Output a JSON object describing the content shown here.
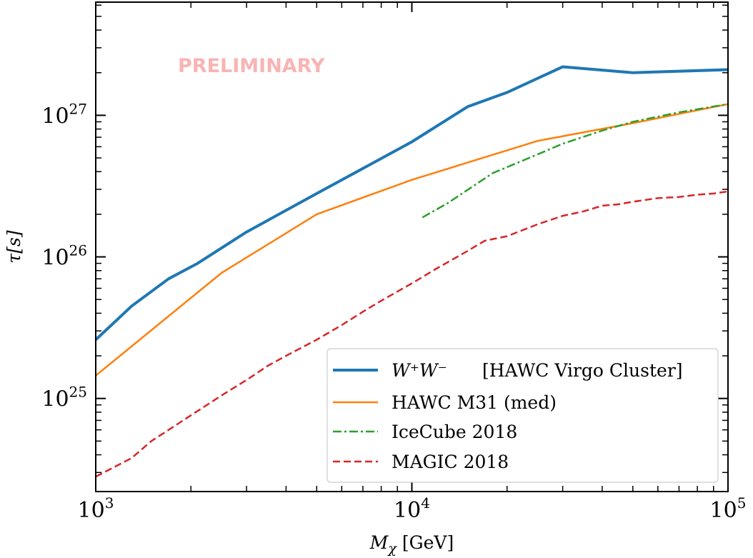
{
  "chart_data": {
    "type": "line",
    "xlabel_symbol": "M",
    "xlabel_sub": "χ",
    "xlabel_unit": " [GeV]",
    "ylabel_symbol": "τ",
    "ylabel_unit": "[s]",
    "xscale": "log",
    "yscale": "log",
    "xlim": [
      1000,
      100000
    ],
    "ylim": [
      2.2e+24,
      6.3e+27
    ],
    "x_tick_labels": [
      {
        "value": 1000,
        "base": "10",
        "exp": "3"
      },
      {
        "value": 10000,
        "base": "10",
        "exp": "4"
      },
      {
        "value": 100000,
        "base": "10",
        "exp": "5"
      }
    ],
    "y_tick_labels": [
      {
        "value": 1e+25,
        "base": "10",
        "exp": "25"
      },
      {
        "value": 1e+26,
        "base": "10",
        "exp": "26"
      },
      {
        "value": 1e+27,
        "base": "10",
        "exp": "27"
      }
    ],
    "watermark": "PRELIMINARY",
    "legend_position": "lower-right",
    "grid": false,
    "series": [
      {
        "name_main": "W⁺W⁻",
        "name_note": "[HAWC Virgo Cluster]",
        "color": "#1f77b4",
        "style": "solid",
        "width": 4,
        "x": [
          1000,
          1300,
          1700,
          2100,
          3000,
          5000,
          10000,
          15000,
          20000,
          30000,
          50000,
          100000
        ],
        "y": [
          2.6e+25,
          4.5e+25,
          7e+25,
          9e+25,
          1.5e+26,
          2.8e+26,
          6.5e+26,
          1.15e+27,
          1.45e+27,
          2.2e+27,
          2e+27,
          2.1e+27
        ]
      },
      {
        "name_main": "HAWC M31 (med)",
        "name_note": "",
        "color": "#ff7f0e",
        "style": "solid",
        "width": 2.5,
        "x": [
          1000,
          2500,
          5000,
          10000,
          25000,
          50000,
          100000
        ],
        "y": [
          1.45e+25,
          7.7e+25,
          2e+26,
          3.5e+26,
          6.6e+26,
          8.8e+26,
          1.2e+27
        ]
      },
      {
        "name_main": "IceCube 2018",
        "name_note": "",
        "color": "#2ca02c",
        "style": "dashdot",
        "width": 2.5,
        "x": [
          10800,
          13000,
          18000,
          25000,
          30000,
          40000,
          50000,
          70000,
          100000
        ],
        "y": [
          1.9e+26,
          2.4e+26,
          3.9e+26,
          5.3e+26,
          6.3e+26,
          7.8e+26,
          9e+26,
          1.05e+27,
          1.2e+27
        ]
      },
      {
        "name_main": "MAGIC 2018",
        "name_note": "",
        "color": "#d62728",
        "style": "dashed",
        "width": 2.5,
        "x": [
          1000,
          1300,
          1500,
          1700,
          2000,
          2500,
          3000,
          3500,
          4000,
          5000,
          6000,
          7000,
          8000,
          10000,
          12000,
          15000,
          17000,
          20000,
          25000,
          30000,
          35000,
          40000,
          45000,
          50000,
          60000,
          70000,
          80000,
          90000,
          100000
        ],
        "y": [
          2.8e+24,
          3.8e+24,
          5e+24,
          6e+24,
          7.6e+24,
          1.05e+25,
          1.35e+25,
          1.7e+25,
          2e+25,
          2.6e+25,
          3.3e+25,
          4.1e+25,
          4.9e+25,
          6.5e+25,
          8.3e+25,
          1.1e+26,
          1.3e+26,
          1.4e+26,
          1.7e+26,
          1.95e+26,
          2.1e+26,
          2.3e+26,
          2.35e+26,
          2.45e+26,
          2.6e+26,
          2.65e+26,
          2.75e+26,
          2.8e+26,
          2.9e+26
        ]
      }
    ]
  }
}
